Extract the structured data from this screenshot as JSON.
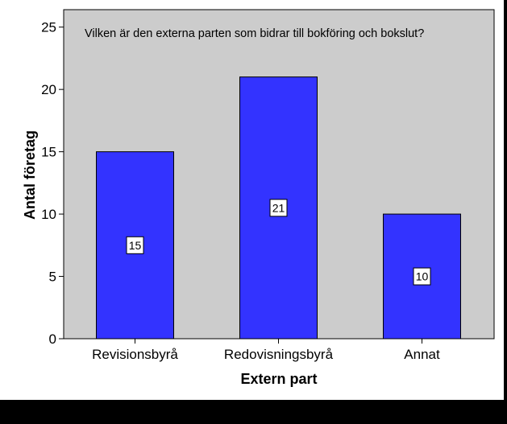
{
  "chart_data": {
    "type": "bar",
    "title": "Vilken är den externa parten som bidrar till bokföring och bokslut?",
    "xlabel": "Extern part",
    "ylabel": "Antal företag",
    "categories": [
      "Revisionsbyrå",
      "Redovisningsbyrå",
      "Annat"
    ],
    "values": [
      15,
      21,
      10
    ],
    "data_labels": [
      "15",
      "21",
      "10"
    ],
    "ylim": [
      0,
      25
    ],
    "yticks": [
      "0",
      "5",
      "10",
      "15",
      "20",
      "25"
    ],
    "grid": false,
    "legend": "none",
    "colors": {
      "bar": "#3333ff",
      "plot_background": "#cccccc",
      "page_background": "#ffffff",
      "frame": "#000000"
    }
  }
}
